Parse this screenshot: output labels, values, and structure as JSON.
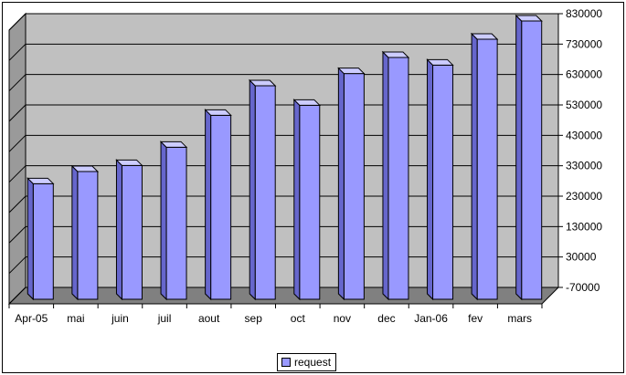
{
  "chart_data": {
    "type": "bar",
    "categories": [
      "Apr-05",
      "mai",
      "juin",
      "juil",
      "aout",
      "sep",
      "oct",
      "nov",
      "dec",
      "Jan-06",
      "fev",
      "mars"
    ],
    "series": [
      {
        "name": "request",
        "values": [
          310000,
          350000,
          370000,
          430000,
          535000,
          632000,
          568000,
          672000,
          725000,
          700000,
          785000,
          845000
        ]
      }
    ],
    "yticks": [
      830000,
      730000,
      630000,
      530000,
      430000,
      330000,
      230000,
      130000,
      30000,
      -70000
    ],
    "ylim": [
      -70000,
      830000
    ],
    "grid": true,
    "legend_position": "bottom",
    "style": "3d-column",
    "colors": {
      "bar_front": "#9999ff",
      "bar_side": "#6666cc",
      "bar_top": "#ccccff",
      "plot_back": "#c0c0c0",
      "plot_side": "#9a9a9a",
      "floor": "#808080"
    }
  }
}
